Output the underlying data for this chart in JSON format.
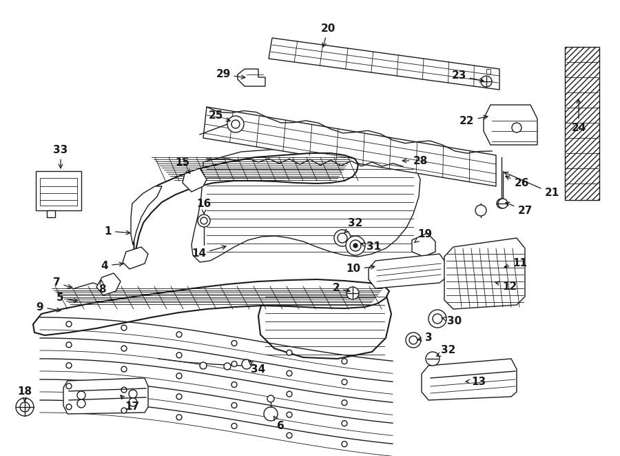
{
  "bg_color": "#ffffff",
  "line_color": "#1a1a1a",
  "lw_main": 1.5,
  "lw_med": 1.0,
  "lw_thin": 0.6,
  "label_fontsize": 11,
  "label_fontsize_sm": 9,
  "fig_w": 9.0,
  "fig_h": 6.61,
  "dpi": 100,
  "labels": {
    "1": [
      157,
      335,
      193,
      338
    ],
    "2": [
      488,
      418,
      512,
      423
    ],
    "3": [
      622,
      490,
      602,
      493
    ],
    "4": [
      152,
      385,
      183,
      382
    ],
    "5": [
      87,
      432,
      117,
      437
    ],
    "6": [
      407,
      617,
      395,
      600
    ],
    "7": [
      82,
      410,
      108,
      418
    ],
    "8": [
      148,
      420,
      147,
      405
    ],
    "9": [
      58,
      445,
      92,
      451
    ],
    "10": [
      513,
      390,
      548,
      386
    ],
    "11": [
      755,
      382,
      728,
      388
    ],
    "12": [
      740,
      415,
      715,
      408
    ],
    "13": [
      695,
      553,
      672,
      553
    ],
    "14": [
      289,
      368,
      332,
      356
    ],
    "15": [
      265,
      235,
      278,
      255
    ],
    "16": [
      296,
      295,
      296,
      314
    ],
    "17": [
      192,
      590,
      172,
      570
    ],
    "18": [
      36,
      568,
      36,
      586
    ],
    "19": [
      617,
      340,
      601,
      352
    ],
    "20": [
      476,
      42,
      468,
      72
    ],
    "21": [
      801,
      280,
      728,
      248
    ],
    "22": [
      678,
      175,
      712,
      168
    ],
    "23": [
      666,
      110,
      706,
      118
    ],
    "24": [
      840,
      185,
      840,
      140
    ],
    "25": [
      313,
      167,
      338,
      177
    ],
    "26": [
      757,
      265,
      730,
      254
    ],
    "27": [
      762,
      305,
      730,
      292
    ],
    "28": [
      610,
      233,
      580,
      233
    ],
    "29": [
      324,
      108,
      360,
      113
    ],
    "30": [
      660,
      465,
      638,
      460
    ],
    "31": [
      543,
      358,
      520,
      352
    ],
    "32a": [
      516,
      324,
      497,
      340
    ],
    "32b": [
      651,
      508,
      630,
      518
    ],
    "33": [
      88,
      218,
      88,
      248
    ],
    "34": [
      375,
      535,
      358,
      521
    ]
  }
}
